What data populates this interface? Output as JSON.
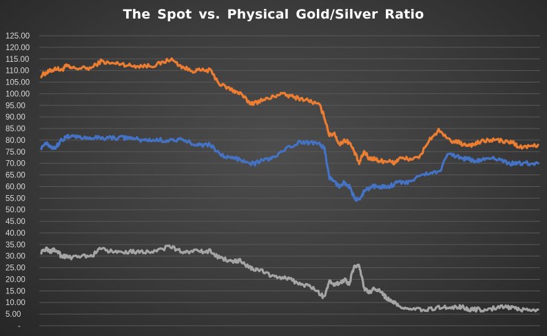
{
  "chart_data": {
    "type": "line",
    "title": "The Spot vs. Physical Gold/Silver Ratio",
    "xlabel": "",
    "ylabel": "",
    "ylim": [
      0,
      125
    ],
    "yticks": [
      "-",
      "5.00",
      "10.00",
      "15.00",
      "20.00",
      "25.00",
      "30.00",
      "35.00",
      "40.00",
      "45.00",
      "50.00",
      "55.00",
      "60.00",
      "65.00",
      "70.00",
      "75.00",
      "80.00",
      "85.00",
      "90.00",
      "95.00",
      "100.00",
      "105.00",
      "110.00",
      "115.00",
      "120.00",
      "125.00"
    ],
    "grid": true,
    "legend": "none",
    "x": [
      0,
      0.01,
      0.02,
      0.03,
      0.04,
      0.05,
      0.06,
      0.08,
      0.1,
      0.12,
      0.14,
      0.16,
      0.18,
      0.2,
      0.22,
      0.24,
      0.26,
      0.28,
      0.3,
      0.32,
      0.34,
      0.36,
      0.38,
      0.39,
      0.4,
      0.42,
      0.43,
      0.44,
      0.46,
      0.48,
      0.5,
      0.52,
      0.54,
      0.56,
      0.57,
      0.58,
      0.59,
      0.6,
      0.61,
      0.62,
      0.63,
      0.64,
      0.65,
      0.66,
      0.67,
      0.68,
      0.69,
      0.7,
      0.71,
      0.72,
      0.74,
      0.76,
      0.78,
      0.8,
      0.82,
      0.84,
      0.85,
      0.86,
      0.87,
      0.88,
      0.9,
      0.92,
      0.94,
      0.95,
      0.96,
      0.98,
      1.0
    ],
    "series": [
      {
        "color": "#ed7d31",
        "values": [
          108,
          109,
          110,
          111,
          110,
          112,
          111,
          111,
          111,
          114,
          113,
          113,
          112,
          112,
          112,
          113,
          115,
          112,
          110,
          110,
          110,
          104,
          102,
          101,
          100,
          96,
          96,
          97,
          98,
          100,
          99,
          98,
          97,
          95,
          90,
          82,
          83,
          78,
          80,
          79,
          75,
          70,
          75,
          72,
          72,
          71,
          71,
          71,
          70,
          72,
          72,
          72,
          80,
          84,
          80,
          79,
          78,
          78,
          78,
          79,
          80,
          80,
          79,
          79,
          77,
          77,
          78
        ]
      },
      {
        "color": "#4472c4",
        "values": [
          77,
          79,
          77,
          77,
          80,
          81,
          82,
          81,
          81,
          81,
          81,
          81,
          81,
          80,
          80,
          80,
          80,
          80,
          79,
          78,
          78,
          74,
          72,
          72,
          72,
          70,
          70,
          71,
          72,
          74,
          77,
          79,
          79,
          79,
          76,
          64,
          62,
          60,
          62,
          60,
          55,
          54,
          58,
          59,
          60,
          60,
          60,
          60,
          61,
          62,
          62,
          64,
          66,
          66,
          74,
          73,
          72,
          72,
          71,
          71,
          72,
          72,
          70,
          70,
          70,
          70,
          70
        ]
      },
      {
        "color": "#a5a5a5",
        "values": [
          32,
          33,
          32,
          33,
          30,
          30,
          29,
          30,
          30,
          33,
          32,
          32,
          32,
          32,
          32,
          33,
          34,
          32,
          32,
          32,
          32,
          29,
          28,
          28,
          28,
          25,
          24,
          24,
          22,
          21,
          20,
          18,
          17,
          14,
          12,
          19,
          18,
          18,
          20,
          18,
          26,
          26,
          16,
          14,
          16,
          15,
          13,
          11,
          10,
          8,
          7,
          7,
          7,
          8,
          8,
          8,
          8,
          7,
          7,
          7,
          7,
          8,
          8,
          8,
          7,
          7,
          7
        ]
      }
    ]
  }
}
